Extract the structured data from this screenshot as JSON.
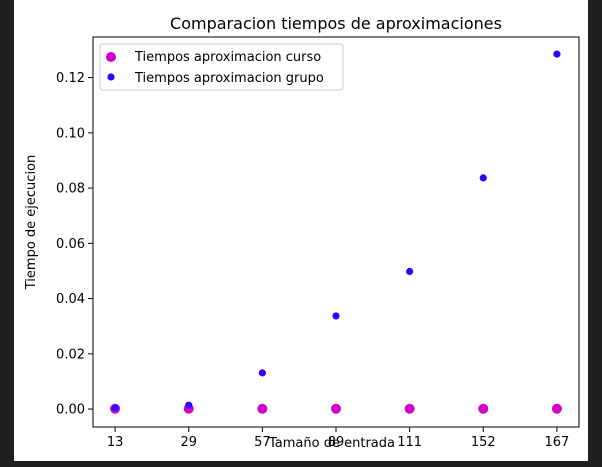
{
  "chart_data": {
    "type": "scatter",
    "title": "Comparacion tiempos de aproximaciones",
    "xlabel": "Tamaño de entrada",
    "ylabel": "Tiempo de ejecucion",
    "categories": [
      "13",
      "29",
      "57",
      "89",
      "111",
      "152",
      "167"
    ],
    "ylim": [
      -0.0065,
      0.1347
    ],
    "yticks": [
      "0.00",
      "0.02",
      "0.04",
      "0.06",
      "0.08",
      "0.10",
      "0.12"
    ],
    "ytick_values": [
      0,
      0.02,
      0.04,
      0.06,
      0.08,
      0.1,
      0.12
    ],
    "grid": false,
    "legend_position": "top-left",
    "series": [
      {
        "name": "Tiempos aproximacion curso",
        "color": "#d400c8",
        "values": [
          0.0001,
          0.0001,
          0.0001,
          0.0001,
          0.0001,
          0.0001,
          0.0001
        ]
      },
      {
        "name": "Tiempos aproximacion grupo",
        "color": "#3300ff",
        "values": [
          0.0004,
          0.0014,
          0.0131,
          0.0337,
          0.0498,
          0.0837,
          0.1285
        ]
      }
    ]
  }
}
